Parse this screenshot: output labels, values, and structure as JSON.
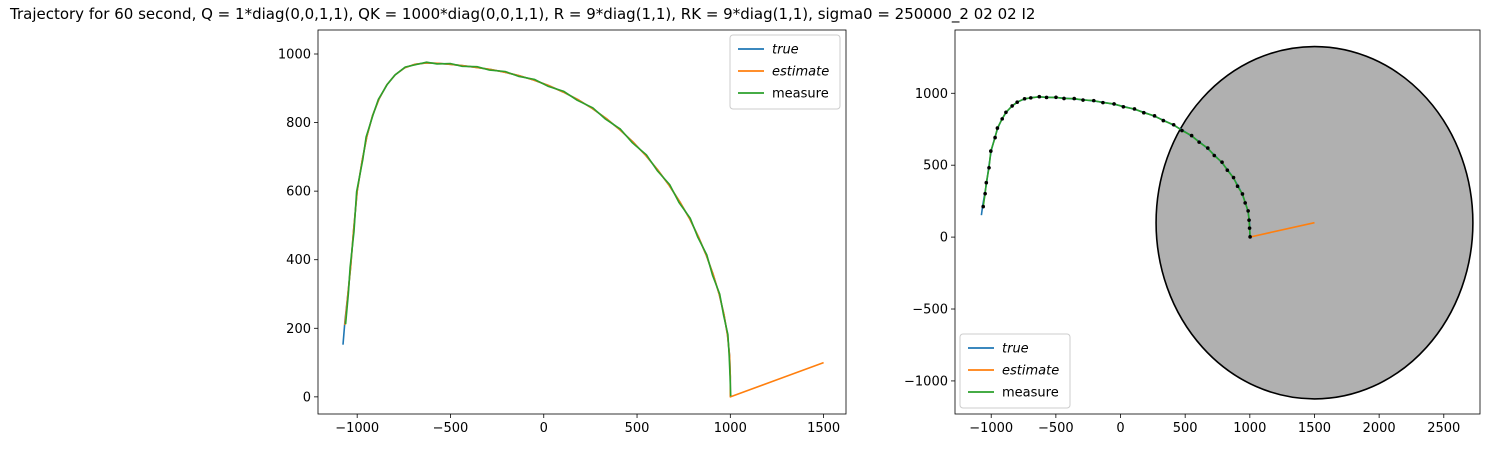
{
  "figure": {
    "title": "Trajectory for 60 second, Q = 1*diag(0,0,1,1), QK = 1000*diag(0,0,1,1), R = 9*diag(1,1), RK = 9*diag(1,1), sigma0 = 250000_2 02 02 I2"
  },
  "colors": {
    "true": "#1f77b4",
    "estimate": "#ff7f0e",
    "measure": "#2ca02c",
    "ellipse_fill": "#b0b0b0",
    "ellipse_edge": "#000000",
    "dots": "#000000"
  },
  "chart_data": [
    {
      "type": "line",
      "title": "",
      "xlabel": "",
      "ylabel": "",
      "xlim": [
        -1210,
        1620
      ],
      "ylim": [
        -50,
        1070
      ],
      "xticks": [
        -1000,
        -500,
        0,
        500,
        1000,
        1500
      ],
      "xtick_labels": [
        "−1000",
        "−500",
        "0",
        "500",
        "1000",
        "1500"
      ],
      "yticks": [
        0,
        200,
        400,
        600,
        800,
        1000
      ],
      "ytick_labels": [
        "0",
        "200",
        "400",
        "600",
        "800",
        "1000"
      ],
      "grid": false,
      "legend": {
        "placement": "top-right",
        "entries": [
          "true",
          "estimate",
          "measure"
        ]
      },
      "series": [
        {
          "name": "true",
          "x": [
            1000,
            1000,
            996,
            985,
            966,
            941,
            909,
            872,
            829,
            782,
            729,
            672,
            611,
            547,
            479,
            408,
            335,
            260,
            183,
            105,
            26,
            -53,
            -132,
            -210,
            -286,
            -361,
            -433,
            -502,
            -568,
            -631,
            -690,
            -745,
            -795,
            -841,
            -882,
            -918,
            -948,
            -973,
            -1000,
            -1020,
            -1035,
            -1050,
            -1066,
            -1076
          ],
          "y": [
            0,
            60,
            120,
            180,
            240,
            298,
            356,
            412,
            467,
            519,
            569,
            617,
            662,
            704,
            743,
            779,
            812,
            841,
            867,
            889,
            908,
            924,
            937,
            947,
            955,
            961,
            966,
            970,
            973,
            974,
            970,
            960,
            940,
            910,
            870,
            820,
            760,
            690,
            600,
            480,
            380,
            300,
            220,
            152
          ]
        },
        {
          "name": "estimate",
          "x": [
            1500,
            1000,
            1000,
            996,
            985,
            966,
            941,
            909,
            872,
            829,
            782,
            729,
            672,
            611,
            547,
            479,
            408,
            335,
            260,
            183,
            105,
            26,
            -53,
            -132,
            -210,
            -286,
            -361,
            -433,
            -502,
            -568,
            -631,
            -690,
            -745,
            -795,
            -841,
            -882,
            -918,
            -948,
            -973,
            -1000,
            -1020,
            -1035,
            -1050,
            -1066
          ],
          "y": [
            100,
            0,
            60,
            120,
            180,
            240,
            298,
            356,
            412,
            467,
            519,
            569,
            617,
            662,
            704,
            743,
            779,
            812,
            841,
            867,
            889,
            908,
            924,
            937,
            947,
            955,
            961,
            966,
            970,
            973,
            974,
            970,
            960,
            940,
            910,
            870,
            820,
            760,
            690,
            600,
            480,
            380,
            300,
            210
          ]
        },
        {
          "name": "measure",
          "x": [
            1002,
            998,
            994,
            987,
            964,
            943,
            905,
            874,
            826,
            785,
            725,
            675,
            608,
            550,
            475,
            411,
            331,
            263,
            180,
            108,
            22,
            -50,
            -136,
            -207,
            -290,
            -358,
            -437,
            -499,
            -572,
            -628,
            -694,
            -742,
            -799,
            -838,
            -886,
            -915,
            -952,
            -970,
            -1003,
            -1017,
            -1038,
            -1047,
            -1062
          ],
          "y": [
            2,
            62,
            118,
            182,
            238,
            300,
            354,
            414,
            465,
            521,
            567,
            619,
            660,
            706,
            741,
            781,
            810,
            843,
            865,
            891,
            906,
            926,
            935,
            949,
            953,
            963,
            964,
            972,
            971,
            976,
            968,
            962,
            938,
            912,
            868,
            822,
            758,
            692,
            598,
            482,
            378,
            302,
            212
          ]
        }
      ]
    },
    {
      "type": "line",
      "title": "",
      "xlabel": "",
      "ylabel": "",
      "xlim": [
        -1280,
        2780
      ],
      "ylim": [
        -1230,
        1440
      ],
      "xticks": [
        -1000,
        -500,
        0,
        500,
        1000,
        1500,
        2000,
        2500
      ],
      "xtick_labels": [
        "−1000",
        "−500",
        "0",
        "500",
        "1000",
        "1500",
        "2000",
        "2500"
      ],
      "yticks": [
        -1000,
        -500,
        0,
        500,
        1000
      ],
      "ytick_labels": [
        "−1000",
        "−500",
        "0",
        "500",
        "1000"
      ],
      "grid": false,
      "legend": {
        "placement": "bottom-left",
        "entries": [
          "true",
          "estimate",
          "measure"
        ]
      },
      "ellipse": {
        "center": [
          1500,
          100
        ],
        "rx": 1225,
        "ry": 1225
      },
      "series": [
        {
          "name": "true",
          "x": [
            1000,
            1000,
            996,
            985,
            966,
            941,
            909,
            872,
            829,
            782,
            729,
            672,
            611,
            547,
            479,
            408,
            335,
            260,
            183,
            105,
            26,
            -53,
            -132,
            -210,
            -286,
            -361,
            -433,
            -502,
            -568,
            -631,
            -690,
            -745,
            -795,
            -841,
            -882,
            -918,
            -948,
            -973,
            -1000,
            -1020,
            -1035,
            -1050,
            -1066,
            -1076
          ],
          "y": [
            0,
            60,
            120,
            180,
            240,
            298,
            356,
            412,
            467,
            519,
            569,
            617,
            662,
            704,
            743,
            779,
            812,
            841,
            867,
            889,
            908,
            924,
            937,
            947,
            955,
            961,
            966,
            970,
            973,
            974,
            970,
            960,
            940,
            910,
            870,
            820,
            760,
            690,
            600,
            480,
            380,
            300,
            220,
            152
          ]
        },
        {
          "name": "estimate",
          "x": [
            1500,
            1000
          ],
          "y": [
            100,
            0
          ]
        },
        {
          "name": "measure",
          "x": [
            1002,
            998,
            994,
            987,
            964,
            943,
            905,
            874,
            826,
            785,
            725,
            675,
            608,
            550,
            475,
            411,
            331,
            263,
            180,
            108,
            22,
            -50,
            -136,
            -207,
            -290,
            -358,
            -437,
            -499,
            -572,
            -628,
            -694,
            -742,
            -799,
            -838,
            -886,
            -915,
            -952,
            -970,
            -1003,
            -1017,
            -1038,
            -1047,
            -1062
          ],
          "y": [
            2,
            62,
            118,
            182,
            238,
            300,
            354,
            414,
            465,
            521,
            567,
            619,
            660,
            706,
            741,
            781,
            810,
            843,
            865,
            891,
            906,
            926,
            935,
            949,
            953,
            963,
            964,
            972,
            971,
            976,
            968,
            962,
            938,
            912,
            868,
            822,
            758,
            692,
            598,
            482,
            378,
            302,
            212
          ]
        }
      ]
    }
  ]
}
